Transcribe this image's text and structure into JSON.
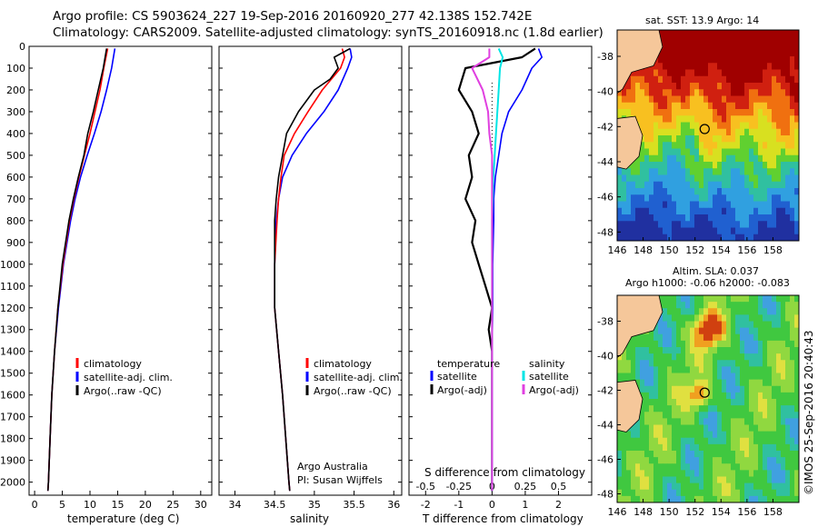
{
  "header": {
    "line1": "Argo profile: CS 5903624_227 19-Sep-2016 20160920_277 42.138S 152.742E",
    "line2": "Climatology: CARS2009. Satellite-adjusted climatology: synTS_20160918.nc (1.8d earlier)"
  },
  "stamp": "©IMOS 25-Sep-2016 20:40:43",
  "colors": {
    "climatology": "#ff0000",
    "satellite": "#0000ff",
    "argo": "#000000",
    "salinity_sat": "#00e5e5",
    "salinity_argo": "#e040e0"
  },
  "chart_data": [
    {
      "type": "line",
      "name": "temperature_panel",
      "xlabel": "temperature (deg C)",
      "xlim": [
        -1,
        32
      ],
      "ylim": [
        2060,
        0
      ],
      "xticks": [
        "0",
        "5",
        "10",
        "15",
        "20",
        "25",
        "30"
      ],
      "yticks": [
        "0",
        "100",
        "200",
        "300",
        "400",
        "500",
        "600",
        "700",
        "800",
        "900",
        "1000",
        "1100",
        "1200",
        "1300",
        "1400",
        "1500",
        "1600",
        "1700",
        "1800",
        "1900",
        "2000"
      ],
      "legend": [
        "climatology",
        "satellite-adj. clim.",
        "Argo(..raw -QC)"
      ],
      "series": [
        {
          "name": "climatology",
          "depth": [
            10,
            100,
            200,
            300,
            400,
            500,
            600,
            700,
            800,
            1000,
            1200,
            1400,
            1600,
            1800,
            2000,
            2040
          ],
          "values": [
            13.2,
            12.5,
            11.8,
            10.9,
            10.0,
            9.0,
            8.0,
            7.1,
            6.3,
            5.1,
            4.2,
            3.6,
            3.1,
            2.8,
            2.5,
            2.4
          ]
        },
        {
          "name": "satellite-adj. clim.",
          "depth": [
            10,
            100,
            200,
            300,
            400,
            500,
            600,
            700,
            800,
            1000,
            1200,
            1400,
            1600,
            1800,
            2000,
            2040
          ],
          "values": [
            14.5,
            13.9,
            13.0,
            12.0,
            10.8,
            9.5,
            8.3,
            7.3,
            6.5,
            5.2,
            4.3,
            3.6,
            3.1,
            2.8,
            2.5,
            2.4
          ]
        },
        {
          "name": "Argo(..raw -QC)",
          "depth": [
            10,
            100,
            200,
            300,
            400,
            500,
            600,
            700,
            800,
            1000,
            1200,
            1400,
            1600,
            1800,
            2000,
            2040
          ],
          "values": [
            13.0,
            12.4,
            11.5,
            10.6,
            9.6,
            8.9,
            7.9,
            7.0,
            6.2,
            5.0,
            4.2,
            3.6,
            3.1,
            2.8,
            2.5,
            2.4
          ]
        }
      ]
    },
    {
      "type": "line",
      "name": "salinity_panel",
      "xlabel": "salinity",
      "xlim": [
        33.8,
        36.1
      ],
      "ylim": [
        2060,
        0
      ],
      "xticks": [
        "34",
        "34.5",
        "35",
        "35.5",
        "36"
      ],
      "legend": [
        "climatology",
        "satellite-adj. clim.",
        "Argo(..raw -QC)"
      ],
      "annotation": [
        "Argo Australia",
        "PI: Susan Wijffels"
      ],
      "series": [
        {
          "name": "climatology",
          "depth": [
            10,
            50,
            100,
            200,
            300,
            400,
            500,
            600,
            700,
            800,
            1000,
            1200,
            1400,
            1600,
            1800,
            2000,
            2040
          ],
          "values": [
            35.35,
            35.38,
            35.33,
            35.1,
            34.92,
            34.75,
            34.62,
            34.58,
            34.55,
            34.53,
            34.5,
            34.5,
            34.55,
            34.6,
            34.64,
            34.68,
            34.69
          ]
        },
        {
          "name": "satellite-adj. clim.",
          "depth": [
            10,
            50,
            100,
            200,
            300,
            400,
            500,
            600,
            700,
            800,
            1000,
            1200,
            1400,
            1600,
            1800,
            2000,
            2040
          ],
          "values": [
            35.45,
            35.47,
            35.42,
            35.3,
            35.12,
            34.9,
            34.72,
            34.6,
            34.55,
            34.52,
            34.5,
            34.5,
            34.55,
            34.6,
            34.64,
            34.68,
            34.69
          ]
        },
        {
          "name": "Argo(..raw -QC)",
          "depth": [
            10,
            50,
            100,
            150,
            200,
            300,
            400,
            500,
            600,
            700,
            800,
            1000,
            1200,
            1400,
            1600,
            1800,
            2000,
            2040
          ],
          "values": [
            35.45,
            35.25,
            35.3,
            35.2,
            35.0,
            34.8,
            34.65,
            34.6,
            34.55,
            34.52,
            34.5,
            34.5,
            34.5,
            34.55,
            34.6,
            34.64,
            34.68,
            34.69
          ]
        }
      ]
    },
    {
      "type": "line",
      "name": "difference_panel",
      "xlabel": "T difference from climatology",
      "xlabel_top": "S difference from climatology",
      "xlim_T": [
        -2.5,
        3
      ],
      "xlim_S": [
        -0.625,
        0.75
      ],
      "ylim": [
        2060,
        0
      ],
      "xticks_T": [
        "-2",
        "-1",
        "0",
        "1",
        "2"
      ],
      "xticks_S": [
        "-0.5",
        "-0.25",
        "0",
        "0.25",
        "0.5"
      ],
      "legend": [
        "temperature",
        "satellite",
        "Argo(-adj)",
        "salinity",
        "satellite",
        "Argo(-adj)"
      ],
      "series": [
        {
          "name": "temperature satellite",
          "unit": "T",
          "depth": [
            10,
            50,
            100,
            200,
            300,
            400,
            500,
            600,
            700,
            800,
            1000,
            1200,
            1400,
            1600,
            1800,
            2000,
            2040
          ],
          "values": [
            1.4,
            1.5,
            1.2,
            0.9,
            0.5,
            0.3,
            0.2,
            0.1,
            0.05,
            0.05,
            0.02,
            0.02,
            0.0,
            0.0,
            0.0,
            0.0,
            0.0
          ]
        },
        {
          "name": "temperature Argo(-adj)",
          "unit": "T",
          "depth": [
            10,
            50,
            100,
            200,
            300,
            400,
            500,
            600,
            700,
            800,
            900,
            1000,
            1100,
            1200,
            1300,
            1400,
            1600,
            1800,
            2000,
            2040
          ],
          "values": [
            1.3,
            0.9,
            -0.8,
            -1.0,
            -0.6,
            -0.4,
            -0.7,
            -0.6,
            -0.8,
            -0.5,
            -0.6,
            -0.4,
            -0.2,
            0.0,
            -0.1,
            0.0,
            0.0,
            0.0,
            0.0,
            0.0
          ]
        },
        {
          "name": "salinity satellite",
          "unit": "S",
          "depth": [
            10,
            50,
            100,
            200,
            300,
            400,
            500,
            600,
            800,
            1000,
            1200,
            1400,
            1600,
            1800,
            2000,
            2040
          ],
          "values": [
            0.05,
            0.08,
            0.06,
            0.05,
            0.04,
            0.03,
            0.02,
            0.01,
            0.0,
            0.0,
            0.0,
            0.0,
            0.0,
            0.0,
            0.0,
            0.0
          ]
        },
        {
          "name": "salinity Argo(-adj)",
          "unit": "S",
          "depth": [
            10,
            50,
            100,
            200,
            300,
            400,
            500,
            600,
            800,
            1000,
            1200,
            1400,
            1600,
            1800,
            2000,
            2040
          ],
          "values": [
            -0.02,
            -0.02,
            -0.15,
            -0.07,
            -0.03,
            -0.02,
            0.0,
            0.0,
            0.0,
            0.0,
            0.0,
            0.0,
            0.0,
            0.0,
            0.0,
            0.0
          ]
        }
      ]
    },
    {
      "type": "heatmap",
      "name": "sst_map",
      "title": "sat. SST: 13.9  Argo: 14",
      "xticks": [
        "146",
        "148",
        "150",
        "152",
        "154",
        "156",
        "158"
      ],
      "yticks": [
        "-38",
        "-40",
        "-42",
        "-44",
        "-46",
        "-48"
      ],
      "xlim": [
        146,
        160
      ],
      "ylim": [
        -48.5,
        -36.5
      ],
      "marker": {
        "lon": 152.742,
        "lat": -42.138
      }
    },
    {
      "type": "heatmap",
      "name": "sla_map",
      "title_lines": [
        "Altim. SLA: 0.037",
        "Argo h1000: -0.06 h2000: -0.083"
      ],
      "xticks": [
        "146",
        "148",
        "150",
        "152",
        "154",
        "156",
        "158"
      ],
      "yticks": [
        "-38",
        "-40",
        "-42",
        "-44",
        "-46",
        "-48"
      ],
      "xlim": [
        146,
        160
      ],
      "ylim": [
        -48.5,
        -36.5
      ],
      "marker": {
        "lon": 152.742,
        "lat": -42.138
      }
    }
  ]
}
